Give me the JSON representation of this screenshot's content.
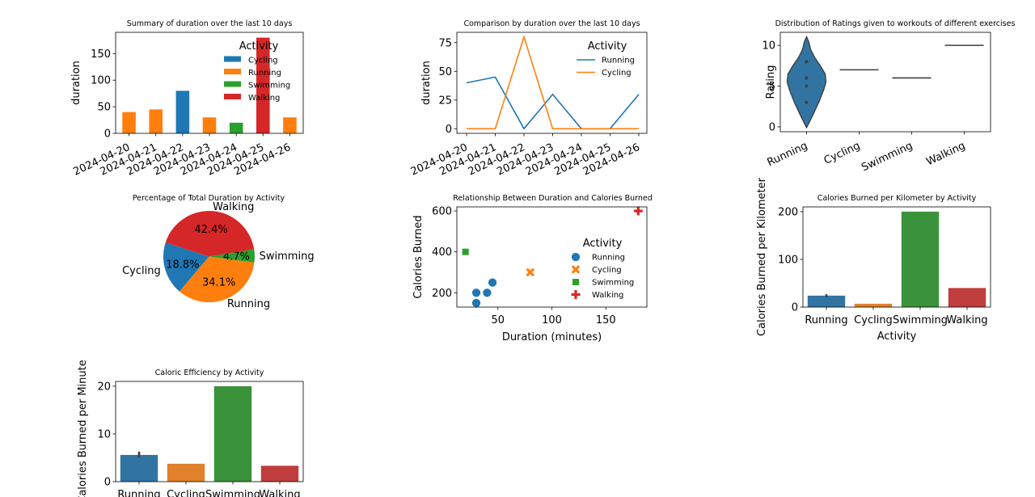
{
  "colors": {
    "blue": "#1f77b4",
    "orange": "#ff7f0e",
    "green": "#2ca02c",
    "red": "#d62728",
    "sns_blue": "#3274a1",
    "sns_orange": "#e1812c",
    "sns_green": "#3a923a",
    "sns_red": "#c03d3e",
    "violin": "#3274a1"
  },
  "chart_data": [
    {
      "id": "duration-summary",
      "type": "bar",
      "title": "Summary of duration over the last 10 days",
      "xlabel": "",
      "ylabel": "duration",
      "ylim": [
        0,
        190
      ],
      "yticks": [
        0,
        50,
        100,
        150
      ],
      "categories": [
        "2024-04-20",
        "2024-04-21",
        "2024-04-22",
        "2024-04-23",
        "2024-04-24",
        "2024-04-25",
        "2024-04-26"
      ],
      "bars": [
        {
          "category": "2024-04-20",
          "series": "Running",
          "value": 40
        },
        {
          "category": "2024-04-21",
          "series": "Running",
          "value": 45
        },
        {
          "category": "2024-04-22",
          "series": "Cycling",
          "value": 80
        },
        {
          "category": "2024-04-23",
          "series": "Running",
          "value": 30
        },
        {
          "category": "2024-04-24",
          "series": "Swimming",
          "value": 20
        },
        {
          "category": "2024-04-25",
          "series": "Walking",
          "value": 180
        },
        {
          "category": "2024-04-26",
          "series": "Running",
          "value": 30
        }
      ],
      "legend": {
        "title": "Activity",
        "placement": "top-right",
        "entries": [
          "Cycling",
          "Running",
          "Swimming",
          "Walking"
        ]
      },
      "grid": false
    },
    {
      "id": "duration-comparison",
      "type": "line",
      "title": "Comparison by duration over the last 10 days",
      "xlabel": "",
      "ylabel": "duration",
      "ylim": [
        -4,
        84
      ],
      "yticks": [
        0,
        25,
        50,
        75
      ],
      "categories": [
        "2024-04-20",
        "2024-04-21",
        "2024-04-22",
        "2024-04-23",
        "2024-04-24",
        "2024-04-25",
        "2024-04-26"
      ],
      "series": [
        {
          "name": "Running",
          "values": [
            40,
            45,
            0,
            30,
            0,
            0,
            30
          ]
        },
        {
          "name": "Cycling",
          "values": [
            0,
            0,
            80,
            0,
            0,
            0,
            0
          ]
        }
      ],
      "legend": {
        "title": "Activity",
        "placement": "top-right"
      },
      "grid": false
    },
    {
      "id": "ratings-violin",
      "type": "violin",
      "title": "Distribution of Ratings given to workouts of different exercises",
      "xlabel": "",
      "ylabel": "Rating",
      "ylim": [
        -0.6,
        11.6
      ],
      "yticks": [
        0,
        5,
        10
      ],
      "categories": [
        "Running",
        "Cycling",
        "Swimming",
        "Walking"
      ],
      "values": [
        [
          3,
          5,
          6,
          8
        ],
        [
          7
        ],
        [
          6
        ],
        [
          10
        ]
      ],
      "grid": false
    },
    {
      "id": "duration-pie",
      "type": "pie",
      "title": "Percentage of Total Duration by Activity",
      "slices": [
        {
          "label": "Cycling",
          "value": 18.8,
          "pct": "18.8%"
        },
        {
          "label": "Running",
          "value": 34.1,
          "pct": "34.1%"
        },
        {
          "label": "Swimming",
          "value": 4.7,
          "pct": "4.7%"
        },
        {
          "label": "Walking",
          "value": 42.4,
          "pct": "42.4%"
        }
      ]
    },
    {
      "id": "duration-calories-scatter",
      "type": "scatter",
      "title": "Relationship Between Duration and Calories Burned",
      "xlabel": "Duration (minutes)",
      "ylabel": "Calories Burned",
      "xlim": [
        12,
        188
      ],
      "ylim": [
        130,
        620
      ],
      "xticks": [
        50,
        100,
        150
      ],
      "yticks": [
        200,
        400,
        600
      ],
      "points": [
        {
          "series": "Running",
          "x": 30,
          "y": 150
        },
        {
          "series": "Running",
          "x": 30,
          "y": 200
        },
        {
          "series": "Running",
          "x": 40,
          "y": 200
        },
        {
          "series": "Running",
          "x": 45,
          "y": 250
        },
        {
          "series": "Cycling",
          "x": 80,
          "y": 300
        },
        {
          "series": "Swimming",
          "x": 20,
          "y": 400
        },
        {
          "series": "Walking",
          "x": 180,
          "y": 600
        }
      ],
      "legend": {
        "title": "Activity",
        "placement": "center-right",
        "entries": [
          "Running",
          "Cycling",
          "Swimming",
          "Walking"
        ]
      },
      "grid": false
    },
    {
      "id": "calories-per-km",
      "type": "bar",
      "title": "Calories Burned per Kilometer by Activity",
      "xlabel": "Activity",
      "ylabel": "Calories Burned per Kilometer",
      "ylim": [
        0,
        210
      ],
      "yticks": [
        0,
        100,
        200
      ],
      "categories": [
        "Running",
        "Cycling",
        "Swimming",
        "Walking"
      ],
      "values": [
        24,
        7,
        200,
        40
      ],
      "error_bars": [
        [
          21,
          27
        ],
        null,
        null,
        null
      ],
      "grid": false
    },
    {
      "id": "caloric-efficiency",
      "type": "bar",
      "title": "Caloric Efficiency by Activity",
      "xlabel": "",
      "ylabel": "Calories Burned per Minute",
      "ylim": [
        0,
        21
      ],
      "yticks": [
        0,
        10,
        20
      ],
      "categories": [
        "Running",
        "Cycling",
        "Swimming",
        "Walking"
      ],
      "values": [
        5.6,
        3.75,
        20,
        3.33
      ],
      "error_bars": [
        [
          5.0,
          6.3
        ],
        null,
        null,
        null
      ],
      "grid": false
    }
  ]
}
